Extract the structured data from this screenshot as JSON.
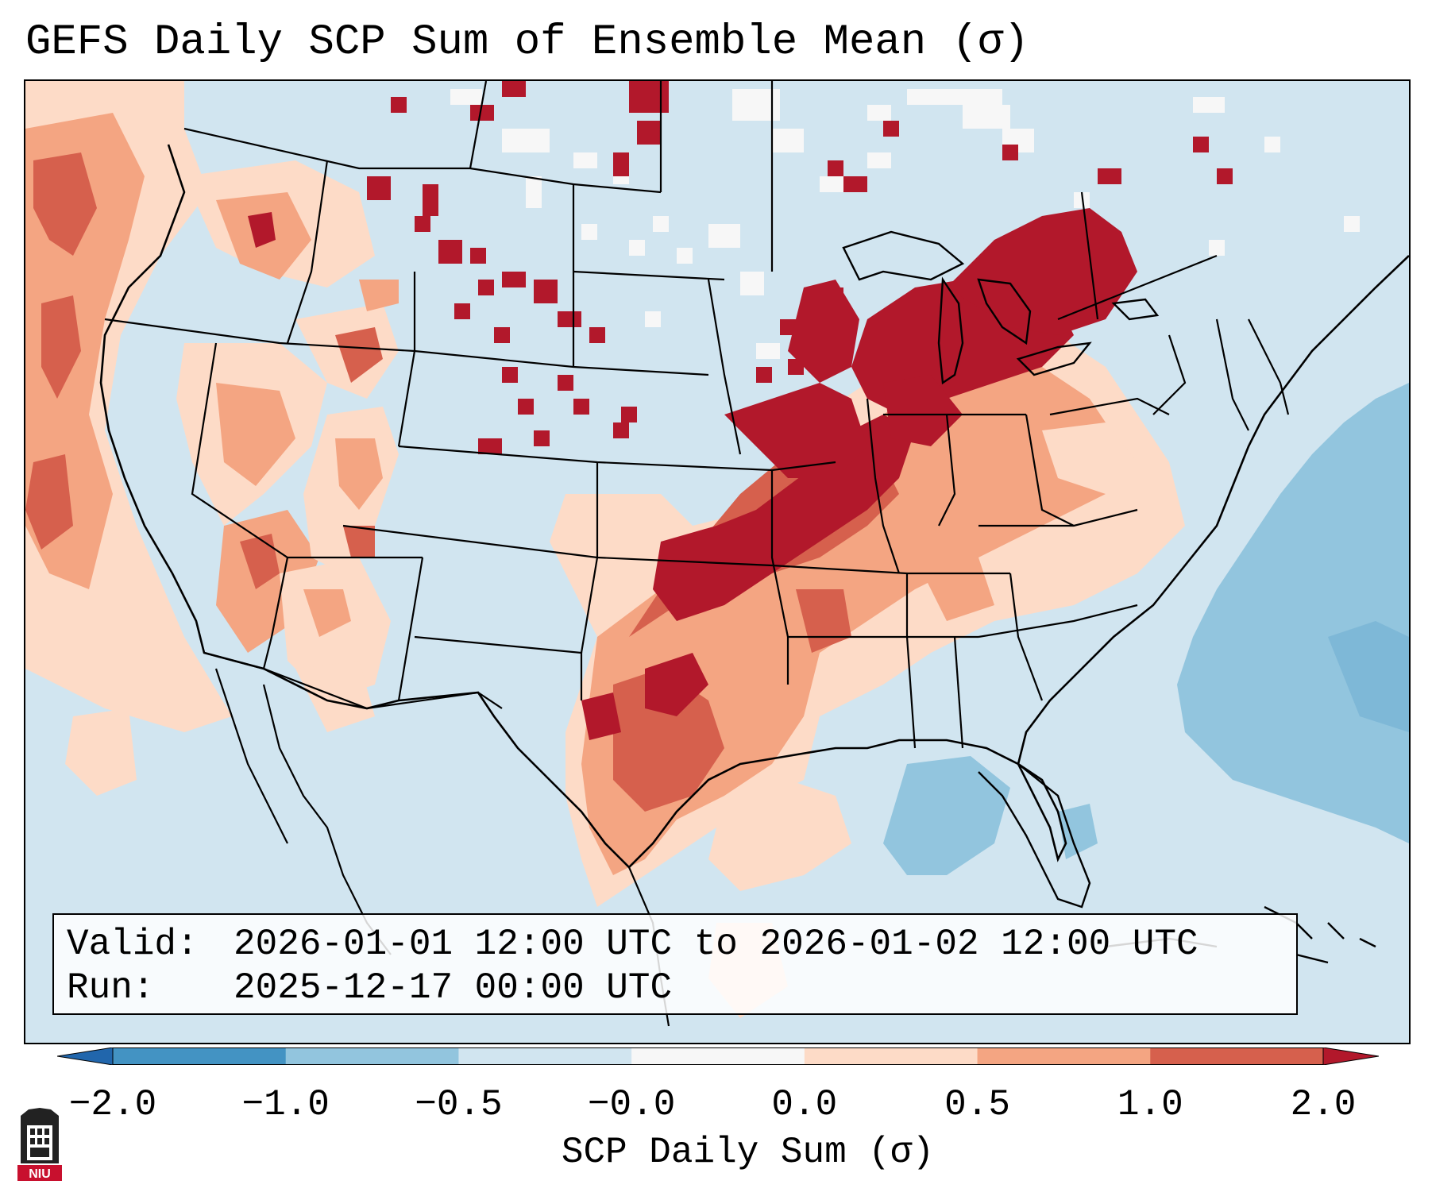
{
  "title": "GEFS Daily SCP Sum of Ensemble Mean (σ)",
  "valid_box": {
    "valid_label": "Valid:",
    "valid_value": "2026-01-01 12:00 UTC to 2026-01-02 12:00 UTC",
    "run_label": "Run:",
    "run_value": "2025-12-17 00:00 UTC"
  },
  "colorbar": {
    "label": "SCP Daily Sum (σ)",
    "ticks": [
      "−2.0",
      "−1.0",
      "−0.5",
      "−0.0",
      "0.0",
      "0.5",
      "1.0",
      "2.0"
    ],
    "bins": [
      {
        "range": "< -2.0",
        "color": "#2166ac"
      },
      {
        "range": "-2.0 to -1.0",
        "color": "#4393c3"
      },
      {
        "range": "-1.0 to -0.5",
        "color": "#92c5de"
      },
      {
        "range": "-0.5 to -0.0",
        "color": "#d1e5f0"
      },
      {
        "range": "-0.0 to 0.0",
        "color": "#f7f7f7"
      },
      {
        "range": "0.0 to 0.5",
        "color": "#fddbc7"
      },
      {
        "range": "0.5 to 1.0",
        "color": "#f4a582"
      },
      {
        "range": "1.0 to 2.0",
        "color": "#d6604d"
      },
      {
        "range": "> 2.0",
        "color": "#b2182b"
      }
    ]
  },
  "map": {
    "region": "Contiguous United States with portions of Canada, Mexico, Gulf of Mexico and western Atlantic",
    "anomaly_regions": [
      {
        "area": "Great Lakes / Michigan / Ohio Valley",
        "level": "> 2.0"
      },
      {
        "area": "Kansas / Missouri / Oklahoma / Iowa",
        "level": "> 2.0"
      },
      {
        "area": "Texas / Arkansas / Louisiana",
        "level": "1.0 to 2.0"
      },
      {
        "area": "Pacific coast / Great Basin",
        "level": "0.0 to 1.0"
      },
      {
        "area": "Western Atlantic offshore",
        "level": "-1.0 to -0.5"
      }
    ]
  },
  "logo": {
    "text": "NIU"
  }
}
